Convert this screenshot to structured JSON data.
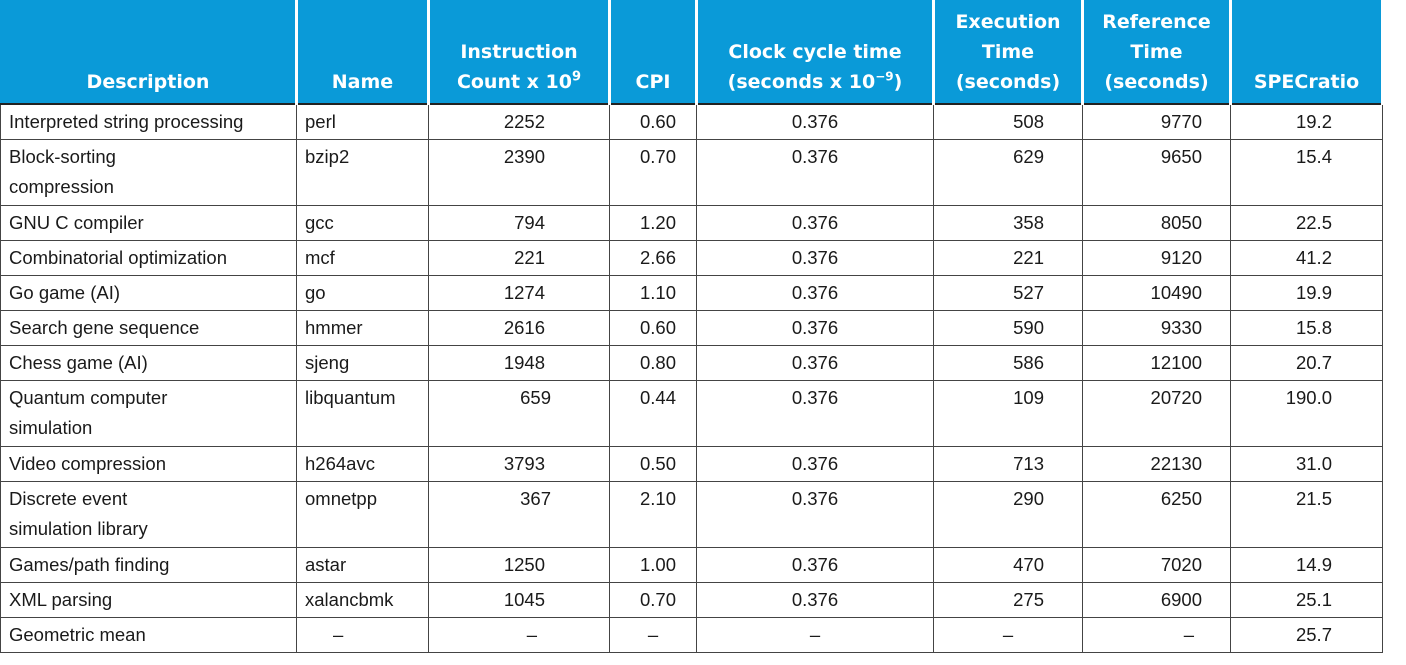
{
  "table": {
    "headers": {
      "description": "Description",
      "name": "Name",
      "instruction_count_line1": "Instruction",
      "instruction_count_line2": "Count x 10",
      "instruction_count_sup": "9",
      "cpi": "CPI",
      "clock_line1": "Clock cycle time",
      "clock_line2_pre": "(seconds x 10",
      "clock_sup": "−9",
      "clock_line2_post": ")",
      "exec_line1": "Execution",
      "exec_line2": "Time",
      "exec_line3": "(seconds)",
      "ref_line1": "Reference",
      "ref_line2": "Time",
      "ref_line3": "(seconds)",
      "specratio": "SPECratio"
    },
    "rows": [
      {
        "description": "Interpreted string processing",
        "name": "perl",
        "instruction_count": "2252",
        "cpi": "0.60",
        "clock": "0.376",
        "exec": "508",
        "ref": "9770",
        "spec": "19.2"
      },
      {
        "description": "Block-sorting compression",
        "name": "bzip2",
        "instruction_count": "2390",
        "cpi": "0.70",
        "clock": "0.376",
        "exec": "629",
        "ref": "9650",
        "spec": "15.4"
      },
      {
        "description": "GNU C compiler",
        "name": "gcc",
        "instruction_count": "794",
        "cpi": "1.20",
        "clock": "0.376",
        "exec": "358",
        "ref": "8050",
        "spec": "22.5"
      },
      {
        "description": "Combinatorial optimization",
        "name": "mcf",
        "instruction_count": "221",
        "cpi": "2.66",
        "clock": "0.376",
        "exec": "221",
        "ref": "9120",
        "spec": "41.2"
      },
      {
        "description": "Go game (AI)",
        "name": "go",
        "instruction_count": "1274",
        "cpi": "1.10",
        "clock": "0.376",
        "exec": "527",
        "ref": "10490",
        "spec": "19.9"
      },
      {
        "description": "Search gene sequence",
        "name": "hmmer",
        "instruction_count": "2616",
        "cpi": "0.60",
        "clock": "0.376",
        "exec": "590",
        "ref": "9330",
        "spec": "15.8"
      },
      {
        "description": "Chess game (AI)",
        "name": "sjeng",
        "instruction_count": "1948",
        "cpi": "0.80",
        "clock": "0.376",
        "exec": "586",
        "ref": "12100",
        "spec": "20.7"
      },
      {
        "description": "Quantum computer simulation",
        "name": "libquantum",
        "instruction_count": "659",
        "cpi": "0.44",
        "clock": "0.376",
        "exec": "109",
        "ref": "20720",
        "spec": "190.0"
      },
      {
        "description": "Video compression",
        "name": "h264avc",
        "instruction_count": "3793",
        "cpi": "0.50",
        "clock": "0.376",
        "exec": "713",
        "ref": "22130",
        "spec": "31.0"
      },
      {
        "description": "Discrete event simulation library",
        "name": "omnetpp",
        "instruction_count": "367",
        "cpi": "2.10",
        "clock": "0.376",
        "exec": "290",
        "ref": "6250",
        "spec": "21.5"
      },
      {
        "description": "Games/path finding",
        "name": "astar",
        "instruction_count": "1250",
        "cpi": "1.00",
        "clock": "0.376",
        "exec": "470",
        "ref": "7020",
        "spec": "14.9"
      },
      {
        "description": "XML parsing",
        "name": "xalancbmk",
        "instruction_count": "1045",
        "cpi": "0.70",
        "clock": "0.376",
        "exec": "275",
        "ref": "6900",
        "spec": "25.1"
      },
      {
        "description": "Geometric mean",
        "name": "–",
        "instruction_count": "–",
        "cpi": "–",
        "clock": "–",
        "exec": "–",
        "ref": "–",
        "spec": "25.7"
      }
    ]
  },
  "colors": {
    "header_background": "#0a9ad8",
    "header_text": "#ffffff",
    "grid_lines": "#444444"
  }
}
